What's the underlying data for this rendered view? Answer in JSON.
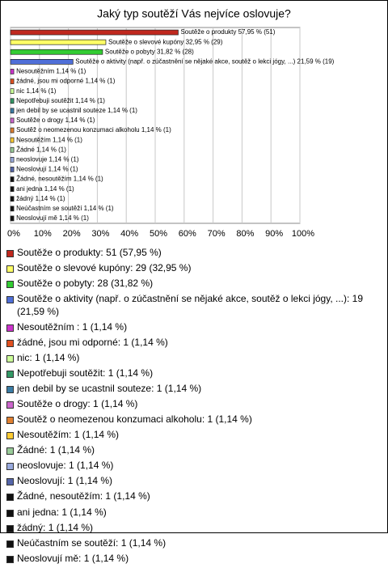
{
  "chart_data": {
    "type": "bar",
    "orientation": "horizontal",
    "title": "Jaký typ soutěží Vás nejvíce oslovuje?",
    "values": [
      57.95,
      32.95,
      31.82,
      21.59,
      1.14,
      1.14,
      1.14,
      1.14,
      1.14,
      1.14,
      1.14,
      1.14,
      1.14,
      1.14,
      1.14,
      1.14,
      1.14,
      1.14,
      1.14,
      1.14
    ],
    "value_labels": [
      "Soutěže o produkty 57,95 % (51)",
      "Soutěže o slevové kupóny 32,95 % (29)",
      "Soutěže o pobyty 31,82 % (28)",
      "Soutěže o aktivity (např. o zúčastnění se nějaké akce, soutěž o lekci jógy, ...) 21,59 % (19)",
      "Nesoutěžním 1,14 % (1)",
      "žádné, jsou mi odporné 1,14 % (1)",
      "nic 1,14 % (1)",
      "Nepotřebuji soutěžit 1,14 % (1)",
      "jen debil by se ucastnil souteze 1,14 % (1)",
      "Soutěže o drogy 1,14 % (1)",
      "Soutěž o  neomezenou konzumaci alkoholu 1,14 % (1)",
      "Nesoutěžím 1,14 % (1)",
      "Žádné 1,14 % (1)",
      "neoslovuje 1,14 % (1)",
      "Neoslovují 1,14 % (1)",
      "Žádné, nesoutěžím 1,14 % (1)",
      "ani jedna 1,14 % (1)",
      "žádný 1,14 % (1)",
      "Neúčastním se soutěží 1,14 % (1)",
      "Neoslovují mě 1,14 % (1)"
    ],
    "legend_labels": [
      "Soutěže o produkty: 51 (57,95 %)",
      "Soutěže o slevové kupóny: 29 (32,95 %)",
      "Soutěže o pobyty: 28 (31,82 %)",
      "Soutěže o aktivity (např. o zúčastnění se nějaké akce, soutěž o lekci jógy, ...): 19 (21,59 %)",
      "Nesoutěžním : 1 (1,14 %)",
      "žádné, jsou mi odporné: 1 (1,14 %)",
      "nic: 1 (1,14 %)",
      "Nepotřebuji soutěžit: 1 (1,14 %)",
      "jen debil by se ucastnil souteze: 1 (1,14 %)",
      "Soutěže o drogy: 1 (1,14 %)",
      "Soutěž o  neomezenou konzumaci alkoholu: 1 (1,14 %)",
      "Nesoutěžím: 1 (1,14 %)",
      "Žádné: 1 (1,14 %)",
      "neoslovuje: 1 (1,14 %)",
      "Neoslovují: 1 (1,14 %)",
      "Žádné, nesoutěžím: 1 (1,14 %)",
      "ani jedna: 1 (1,14 %)",
      "žádný: 1 (1,14 %)",
      "Neúčastním se soutěží: 1 (1,14 %)",
      "Neoslovují mě: 1 (1,14 %)"
    ],
    "colors": [
      "#c0281e",
      "#ffff66",
      "#33cc33",
      "#4f6fd8",
      "#cc33cc",
      "#e05020",
      "#ccff99",
      "#339966",
      "#3a7ca5",
      "#cc66cc",
      "#e08030",
      "#ffcc33",
      "#99cc99",
      "#99aadd",
      "#5566aa",
      "#111111",
      "#111111",
      "#111111",
      "#111111",
      "#111111"
    ],
    "xlim": [
      0,
      100
    ],
    "xticks": [
      {
        "value": 0,
        "label": "0%"
      },
      {
        "value": 10,
        "label": "10%"
      },
      {
        "value": 20,
        "label": "20%"
      },
      {
        "value": 30,
        "label": "30%"
      },
      {
        "value": 40,
        "label": "40%"
      },
      {
        "value": 50,
        "label": "50%"
      },
      {
        "value": 60,
        "label": "60%"
      },
      {
        "value": 70,
        "label": "70%"
      },
      {
        "value": 80,
        "label": "80%"
      },
      {
        "value": 90,
        "label": "90%"
      },
      {
        "value": 100,
        "label": "100%"
      }
    ],
    "grid": true
  }
}
